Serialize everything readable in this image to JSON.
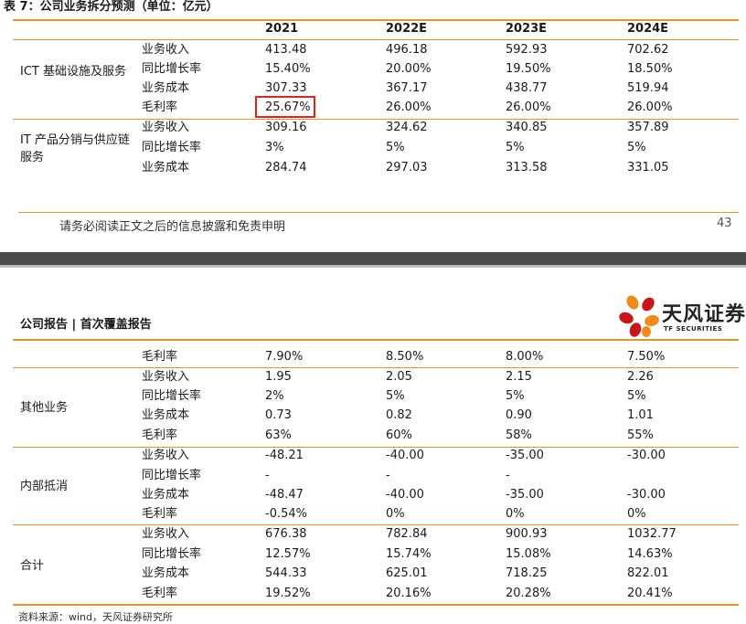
{
  "page1": {
    "table_title": "表 7：公司业务拆分预测（单位：亿元）",
    "columns": [
      "2021",
      "2022E",
      "2023E",
      "2024E"
    ],
    "highlight_value": "25.67%",
    "segments": [
      {
        "label": "ICT 基础设施及服务",
        "rows": [
          {
            "metric": "业务收入",
            "values": [
              "413.48",
              "496.18",
              "592.93",
              "702.62"
            ]
          },
          {
            "metric": "同比增长率",
            "values": [
              "15.40%",
              "20.00%",
              "19.50%",
              "18.50%"
            ]
          },
          {
            "metric": "业务成本",
            "values": [
              "307.33",
              "367.17",
              "438.77",
              "519.94"
            ]
          },
          {
            "metric": "毛利率",
            "values": [
              "25.67%",
              "26.00%",
              "26.00%",
              "26.00%"
            ]
          }
        ]
      },
      {
        "label": "IT 产品分销与供应链服务",
        "rows": [
          {
            "metric": "业务收入",
            "values": [
              "309.16",
              "324.62",
              "340.85",
              "357.89"
            ]
          },
          {
            "metric": "同比增长率",
            "values": [
              "3%",
              "5%",
              "5%",
              "5%"
            ]
          },
          {
            "metric": "业务成本",
            "values": [
              "284.74",
              "297.03",
              "313.58",
              "331.05"
            ]
          }
        ]
      }
    ],
    "footer_text": "请务必阅读正文之后的信息披露和免责申明",
    "page_number": "43"
  },
  "page2": {
    "header_title": "公司报告 | 首次覆盖报告",
    "logo_text": "天风证券",
    "logo_subtext": "TF SECURITIES",
    "first_row": {
      "metric": "毛利率",
      "values": [
        "7.90%",
        "8.50%",
        "8.00%",
        "7.50%"
      ]
    },
    "segments": [
      {
        "label": "其他业务",
        "rows": [
          {
            "metric": "业务收入",
            "values": [
              "1.95",
              "2.05",
              "2.15",
              "2.26"
            ]
          },
          {
            "metric": "同比增长率",
            "values": [
              "2%",
              "5%",
              "5%",
              "5%"
            ]
          },
          {
            "metric": "业务成本",
            "values": [
              "0.73",
              "0.82",
              "0.90",
              "1.01"
            ]
          },
          {
            "metric": "毛利率",
            "values": [
              "63%",
              "60%",
              "58%",
              "55%"
            ]
          }
        ]
      },
      {
        "label": "内部抵消",
        "rows": [
          {
            "metric": "业务收入",
            "values": [
              "-48.21",
              "-40.00",
              "-35.00",
              "-30.00"
            ]
          },
          {
            "metric": "同比增长率",
            "values": [
              "-",
              "-",
              "-",
              ""
            ]
          },
          {
            "metric": "业务成本",
            "values": [
              "-48.47",
              "-40.00",
              "-35.00",
              "-30.00"
            ]
          },
          {
            "metric": "毛利率",
            "values": [
              "-0.54%",
              "0%",
              "0%",
              "0%"
            ]
          }
        ]
      },
      {
        "label": "合计",
        "rows": [
          {
            "metric": "业务收入",
            "values": [
              "676.38",
              "782.84",
              "900.93",
              "1032.77"
            ]
          },
          {
            "metric": "同比增长率",
            "values": [
              "12.57%",
              "15.74%",
              "15.08%",
              "14.63%"
            ]
          },
          {
            "metric": "业务成本",
            "values": [
              "544.33",
              "625.01",
              "718.25",
              "822.01"
            ]
          },
          {
            "metric": "毛利率",
            "values": [
              "19.52%",
              "20.16%",
              "20.28%",
              "20.41%"
            ]
          }
        ]
      }
    ],
    "source_note": "资料来源：wind，天风证券研究所"
  },
  "colors": {
    "orange_rule": "#e8932a",
    "highlight_box": "#e0231c",
    "page_gap": "#4a4a4a",
    "logo_red": "#c8161d",
    "logo_orange": "#f08a1c"
  }
}
